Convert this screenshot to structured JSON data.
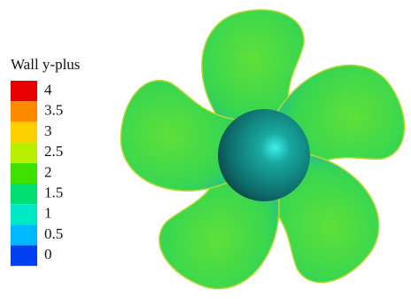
{
  "legend": {
    "title": "Wall y-plus",
    "labels": [
      "4",
      "3.5",
      "3",
      "2.5",
      "2",
      "1.5",
      "1",
      "0.5",
      "0"
    ],
    "colors": [
      "#e80000",
      "#ff8a00",
      "#ffd000",
      "#b8f000",
      "#3ee000",
      "#00e070",
      "#00e8c8",
      "#00b8ff",
      "#0040f0"
    ]
  }
}
